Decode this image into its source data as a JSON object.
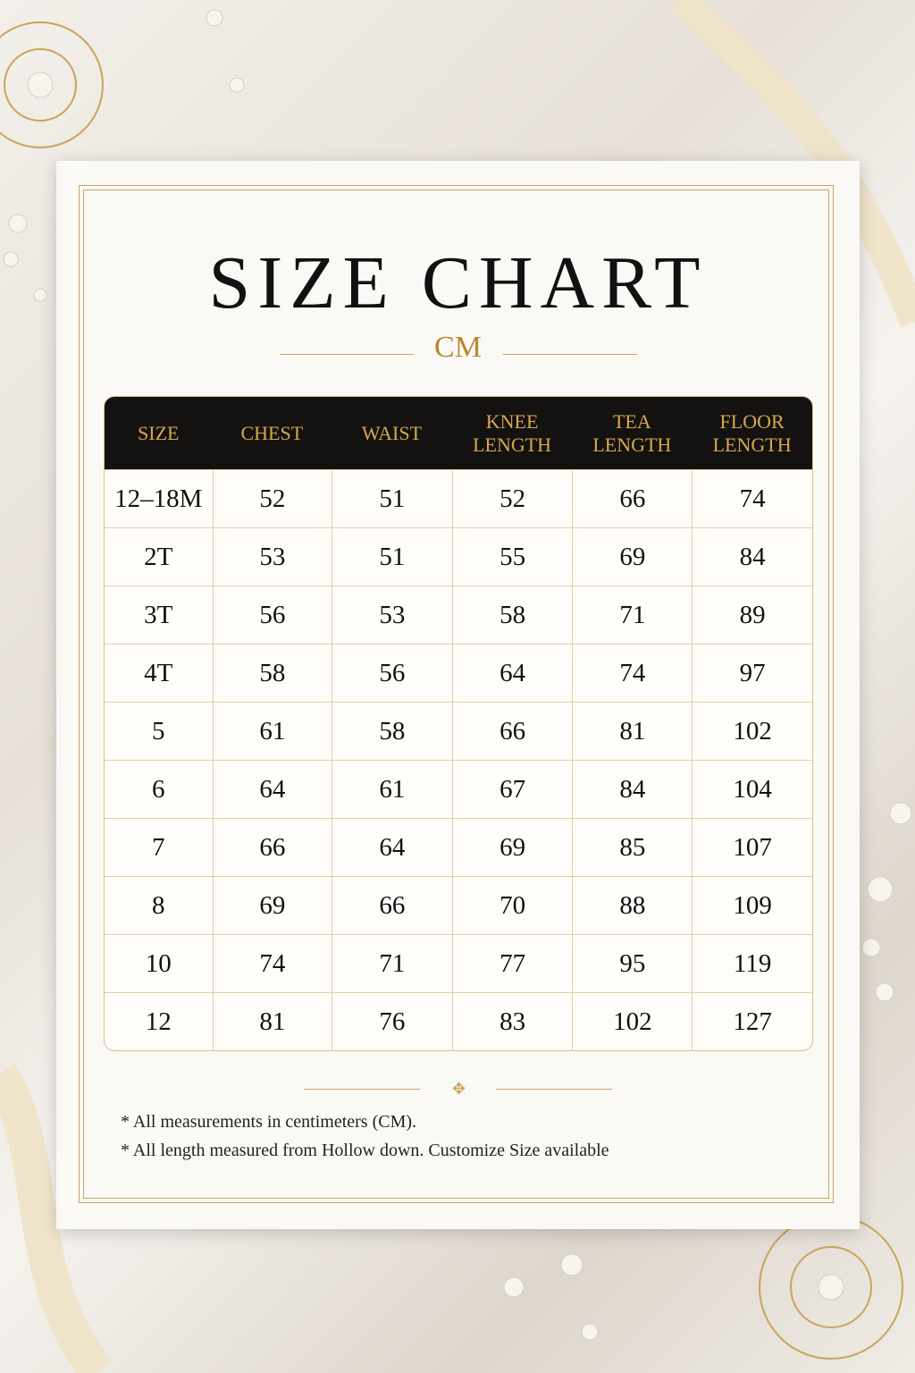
{
  "header": {
    "title": "SIZE CHART",
    "unit": "CM"
  },
  "table": {
    "columns": [
      "SIZE",
      "CHEST",
      "WAIST",
      "KNEE LENGTH",
      "TEA LENGTH",
      "FLOOR LENGTH"
    ],
    "rows": [
      [
        "12–18M",
        52,
        51,
        52,
        66,
        74
      ],
      [
        "2T",
        53,
        51,
        55,
        69,
        84
      ],
      [
        "3T",
        56,
        53,
        58,
        71,
        89
      ],
      [
        "4T",
        58,
        56,
        64,
        74,
        97
      ],
      [
        "5",
        61,
        58,
        66,
        81,
        102
      ],
      [
        "6",
        64,
        61,
        67,
        84,
        104
      ],
      [
        "7",
        66,
        64,
        69,
        85,
        107
      ],
      [
        "8",
        69,
        66,
        70,
        88,
        109
      ],
      [
        "10",
        74,
        71,
        77,
        95,
        119
      ],
      [
        "12",
        81,
        76,
        83,
        102,
        127
      ]
    ]
  },
  "notes": [
    "*  All measurements in centimeters (CM).",
    "*  All length measured from Hollow down. Customize Size available"
  ]
}
